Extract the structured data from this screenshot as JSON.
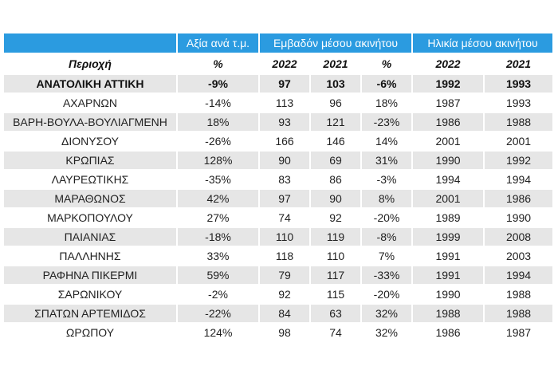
{
  "groups": [
    "",
    "Αξία ανά τ.μ.",
    "Εμβαδόν μέσου ακινήτου",
    "Ηλικία μέσου ακινήτου"
  ],
  "subheaders": [
    "Περιοχή",
    "%",
    "2022",
    "2021",
    "%",
    "2022",
    "2021"
  ],
  "rows": [
    {
      "region": "ΑΝΑΤΟΛΙΚΗ ΑΤΤΙΚΗ",
      "value_pct": "-9%",
      "area_2022": "97",
      "area_2021": "103",
      "area_pct": "-6%",
      "age_2022": "1992",
      "age_2021": "1993"
    },
    {
      "region": "ΑΧΑΡΝΩΝ",
      "value_pct": "-14%",
      "area_2022": "113",
      "area_2021": "96",
      "area_pct": "18%",
      "age_2022": "1987",
      "age_2021": "1993"
    },
    {
      "region": "ΒΑΡΗ-ΒΟΥΛΑ-ΒΟΥΛΙΑΓΜΕΝΗ",
      "value_pct": "18%",
      "area_2022": "93",
      "area_2021": "121",
      "area_pct": "-23%",
      "age_2022": "1986",
      "age_2021": "1988"
    },
    {
      "region": "ΔΙΟΝΥΣΟΥ",
      "value_pct": "-26%",
      "area_2022": "166",
      "area_2021": "146",
      "area_pct": "14%",
      "age_2022": "2001",
      "age_2021": "2001"
    },
    {
      "region": "ΚΡΩΠΙΑΣ",
      "value_pct": "128%",
      "area_2022": "90",
      "area_2021": "69",
      "area_pct": "31%",
      "age_2022": "1990",
      "age_2021": "1992"
    },
    {
      "region": "ΛΑΥΡΕΩΤΙΚΗΣ",
      "value_pct": "-35%",
      "area_2022": "83",
      "area_2021": "86",
      "area_pct": "-3%",
      "age_2022": "1994",
      "age_2021": "1994"
    },
    {
      "region": "ΜΑΡΑΘΩΝΟΣ",
      "value_pct": "42%",
      "area_2022": "97",
      "area_2021": "90",
      "area_pct": "8%",
      "age_2022": "2001",
      "age_2021": "1986"
    },
    {
      "region": "ΜΑΡΚΟΠΟΥΛΟΥ",
      "value_pct": "27%",
      "area_2022": "74",
      "area_2021": "92",
      "area_pct": "-20%",
      "age_2022": "1989",
      "age_2021": "1990"
    },
    {
      "region": "ΠΑΙΑΝΙΑΣ",
      "value_pct": "-18%",
      "area_2022": "110",
      "area_2021": "119",
      "area_pct": "-8%",
      "age_2022": "1999",
      "age_2021": "2008"
    },
    {
      "region": "ΠΑΛΛΗΝΗΣ",
      "value_pct": "33%",
      "area_2022": "118",
      "area_2021": "110",
      "area_pct": "7%",
      "age_2022": "1991",
      "age_2021": "2003"
    },
    {
      "region": "ΡΑΦΗΝΑ ΠΙΚΕΡΜΙ",
      "value_pct": "59%",
      "area_2022": "79",
      "area_2021": "117",
      "area_pct": "-33%",
      "age_2022": "1991",
      "age_2021": "1994"
    },
    {
      "region": "ΣΑΡΩΝΙΚΟΥ",
      "value_pct": "-2%",
      "area_2022": "92",
      "area_2021": "115",
      "area_pct": "-20%",
      "age_2022": "1990",
      "age_2021": "1988"
    },
    {
      "region": "ΣΠΑΤΩΝ ΑΡΤΕΜΙΔΟΣ",
      "value_pct": "-22%",
      "area_2022": "84",
      "area_2021": "63",
      "area_pct": "32%",
      "age_2022": "1988",
      "age_2021": "1988"
    },
    {
      "region": "ΩΡΩΠΟΥ",
      "value_pct": "124%",
      "area_2022": "98",
      "area_2021": "74",
      "area_pct": "32%",
      "age_2022": "1986",
      "age_2021": "1987"
    }
  ],
  "colors": {
    "header_bg": "#2b9be0",
    "stripe_bg": "#e6e6e6"
  }
}
